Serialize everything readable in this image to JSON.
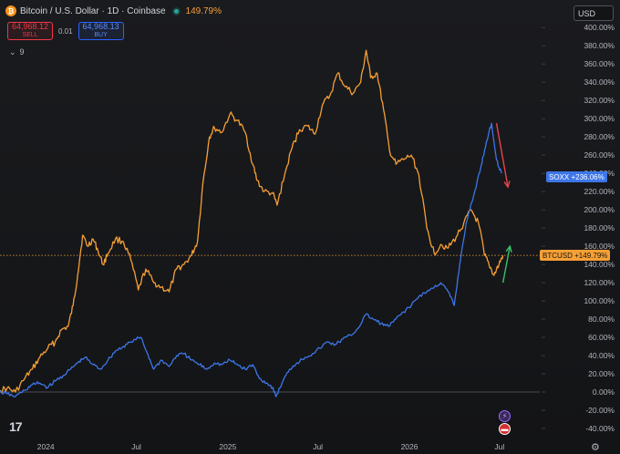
{
  "header": {
    "title": "Bitcoin / U.S. Dollar · 1D · Coinbase",
    "change": "149.79%"
  },
  "trade": {
    "sell_price": "64,968.12",
    "sell_label": "SELL",
    "spread": "0.01",
    "buy_price": "64,968.13",
    "buy_label": "BUY"
  },
  "indicators": {
    "count": "9"
  },
  "currency": {
    "selected": "USD"
  },
  "labels": {
    "soxx": {
      "name": "SOXX",
      "value": "+236.06%"
    },
    "btc": {
      "name": "BTCUSD",
      "value": "+149.79%"
    }
  },
  "icons": {
    "logo": "tradingview-logo-icon",
    "settings": "gear-icon",
    "flash": "lightning-icon",
    "flag": "us-flag-icon",
    "trend_down": "red-arrow-down",
    "trend_up": "green-arrow-up"
  },
  "colors": {
    "btc": "#f7a035",
    "soxx": "#3d76e8",
    "down_arrow": "#e8424c",
    "up_arrow": "#39c06a",
    "background": "#131416"
  },
  "chart_data": {
    "type": "line",
    "y_unit": "%",
    "ylim": [
      -50,
      410
    ],
    "y_ticks": [
      "400.00%",
      "380.00%",
      "360.00%",
      "340.00%",
      "320.00%",
      "300.00%",
      "280.00%",
      "260.00%",
      "240.00%",
      "220.00%",
      "200.00%",
      "180.00%",
      "160.00%",
      "140.00%",
      "120.00%",
      "100.00%",
      "80.00%",
      "60.00%",
      "40.00%",
      "20.00%",
      "0.00%",
      "-20.00%",
      "-40.00%"
    ],
    "y_tick_values": [
      400,
      380,
      360,
      340,
      320,
      300,
      280,
      260,
      240,
      220,
      200,
      180,
      160,
      140,
      120,
      100,
      80,
      60,
      40,
      20,
      0,
      -20,
      -40
    ],
    "x_ticks": [
      "2024",
      "Jul",
      "2025",
      "Jul",
      "2026",
      "Jul"
    ],
    "x_tick_dates": [
      "2024-01-01",
      "2024-07-01",
      "2025-01-01",
      "2025-07-01",
      "2026-01-01",
      "2026-07-01"
    ],
    "xlim": [
      "2023-10-01",
      "2026-09-20"
    ],
    "series": [
      {
        "name": "BTCUSD",
        "color": "#f7a035",
        "points": [
          [
            "2023-10-01",
            2
          ],
          [
            "2023-10-15",
            4
          ],
          [
            "2023-11-01",
            0
          ],
          [
            "2023-11-20",
            15
          ],
          [
            "2023-12-05",
            25
          ],
          [
            "2023-12-20",
            38
          ],
          [
            "2024-01-05",
            48
          ],
          [
            "2024-01-20",
            55
          ],
          [
            "2024-02-01",
            68
          ],
          [
            "2024-02-15",
            72
          ],
          [
            "2024-02-25",
            95
          ],
          [
            "2024-03-05",
            128
          ],
          [
            "2024-03-15",
            172
          ],
          [
            "2024-03-25",
            160
          ],
          [
            "2024-04-05",
            168
          ],
          [
            "2024-04-15",
            155
          ],
          [
            "2024-04-25",
            140
          ],
          [
            "2024-05-05",
            152
          ],
          [
            "2024-05-20",
            168
          ],
          [
            "2024-06-05",
            165
          ],
          [
            "2024-06-20",
            145
          ],
          [
            "2024-07-05",
            112
          ],
          [
            "2024-07-20",
            135
          ],
          [
            "2024-08-05",
            120
          ],
          [
            "2024-08-20",
            115
          ],
          [
            "2024-09-05",
            110
          ],
          [
            "2024-09-20",
            135
          ],
          [
            "2024-10-05",
            140
          ],
          [
            "2024-10-20",
            150
          ],
          [
            "2024-11-01",
            165
          ],
          [
            "2024-11-12",
            230
          ],
          [
            "2024-11-25",
            280
          ],
          [
            "2024-12-05",
            290
          ],
          [
            "2024-12-20",
            285
          ],
          [
            "2025-01-05",
            305
          ],
          [
            "2025-01-20",
            298
          ],
          [
            "2025-02-05",
            285
          ],
          [
            "2025-02-20",
            250
          ],
          [
            "2025-03-01",
            232
          ],
          [
            "2025-03-15",
            220
          ],
          [
            "2025-04-01",
            218
          ],
          [
            "2025-04-10",
            205
          ],
          [
            "2025-04-25",
            238
          ],
          [
            "2025-05-10",
            268
          ],
          [
            "2025-05-25",
            288
          ],
          [
            "2025-06-10",
            292
          ],
          [
            "2025-06-25",
            283
          ],
          [
            "2025-07-10",
            315
          ],
          [
            "2025-07-25",
            325
          ],
          [
            "2025-08-10",
            350
          ],
          [
            "2025-08-25",
            335
          ],
          [
            "2025-09-10",
            328
          ],
          [
            "2025-09-25",
            340
          ],
          [
            "2025-10-06",
            375
          ],
          [
            "2025-10-15",
            345
          ],
          [
            "2025-10-28",
            350
          ],
          [
            "2025-11-10",
            310
          ],
          [
            "2025-11-22",
            265
          ],
          [
            "2025-12-05",
            250
          ],
          [
            "2025-12-20",
            255
          ],
          [
            "2026-01-05",
            260
          ],
          [
            "2026-01-20",
            238
          ],
          [
            "2026-02-05",
            180
          ],
          [
            "2026-02-20",
            152
          ],
          [
            "2026-03-05",
            162
          ],
          [
            "2026-03-20",
            158
          ],
          [
            "2026-04-05",
            170
          ],
          [
            "2026-04-20",
            185
          ],
          [
            "2026-05-05",
            200
          ],
          [
            "2026-05-20",
            185
          ],
          [
            "2026-06-01",
            150
          ],
          [
            "2026-06-10",
            140
          ],
          [
            "2026-06-20",
            128
          ],
          [
            "2026-06-30",
            140
          ],
          [
            "2026-07-08",
            150
          ]
        ]
      },
      {
        "name": "SOXX",
        "color": "#3d76e8",
        "points": [
          [
            "2023-10-01",
            0
          ],
          [
            "2023-10-15",
            -2
          ],
          [
            "2023-11-01",
            -5
          ],
          [
            "2023-11-20",
            2
          ],
          [
            "2023-12-05",
            8
          ],
          [
            "2023-12-20",
            10
          ],
          [
            "2024-01-05",
            5
          ],
          [
            "2024-01-20",
            12
          ],
          [
            "2024-02-05",
            18
          ],
          [
            "2024-02-20",
            25
          ],
          [
            "2024-03-05",
            32
          ],
          [
            "2024-03-20",
            38
          ],
          [
            "2024-04-05",
            30
          ],
          [
            "2024-04-20",
            25
          ],
          [
            "2024-05-05",
            35
          ],
          [
            "2024-05-20",
            45
          ],
          [
            "2024-06-05",
            50
          ],
          [
            "2024-06-20",
            55
          ],
          [
            "2024-07-10",
            60
          ],
          [
            "2024-07-25",
            40
          ],
          [
            "2024-08-05",
            25
          ],
          [
            "2024-08-20",
            35
          ],
          [
            "2024-09-05",
            28
          ],
          [
            "2024-09-20",
            40
          ],
          [
            "2024-10-05",
            42
          ],
          [
            "2024-10-20",
            35
          ],
          [
            "2024-11-05",
            30
          ],
          [
            "2024-11-20",
            25
          ],
          [
            "2024-12-05",
            32
          ],
          [
            "2024-12-20",
            30
          ],
          [
            "2025-01-05",
            35
          ],
          [
            "2025-01-20",
            30
          ],
          [
            "2025-02-05",
            25
          ],
          [
            "2025-02-20",
            30
          ],
          [
            "2025-03-05",
            15
          ],
          [
            "2025-03-20",
            10
          ],
          [
            "2025-04-01",
            5
          ],
          [
            "2025-04-08",
            -5
          ],
          [
            "2025-04-20",
            10
          ],
          [
            "2025-05-05",
            25
          ],
          [
            "2025-05-20",
            32
          ],
          [
            "2025-06-05",
            38
          ],
          [
            "2025-06-20",
            42
          ],
          [
            "2025-07-05",
            48
          ],
          [
            "2025-07-20",
            55
          ],
          [
            "2025-08-05",
            52
          ],
          [
            "2025-08-20",
            58
          ],
          [
            "2025-09-05",
            62
          ],
          [
            "2025-09-20",
            70
          ],
          [
            "2025-10-05",
            85
          ],
          [
            "2025-10-20",
            80
          ],
          [
            "2025-11-05",
            75
          ],
          [
            "2025-11-20",
            72
          ],
          [
            "2025-12-05",
            80
          ],
          [
            "2025-12-20",
            88
          ],
          [
            "2026-01-05",
            95
          ],
          [
            "2026-01-20",
            105
          ],
          [
            "2026-02-05",
            110
          ],
          [
            "2026-02-20",
            115
          ],
          [
            "2026-03-05",
            120
          ],
          [
            "2026-03-20",
            110
          ],
          [
            "2026-04-01",
            95
          ],
          [
            "2026-04-12",
            140
          ],
          [
            "2026-04-25",
            185
          ],
          [
            "2026-05-10",
            215
          ],
          [
            "2026-05-25",
            248
          ],
          [
            "2026-06-05",
            275
          ],
          [
            "2026-06-15",
            295
          ],
          [
            "2026-06-25",
            255
          ],
          [
            "2026-07-05",
            240
          ]
        ]
      }
    ]
  },
  "annotations": {
    "down_arrow": {
      "from": [
        "2026-06-25",
        295
      ],
      "to": [
        "2026-07-18",
        225
      ],
      "color": "#e8424c"
    },
    "up_arrow": {
      "from": [
        "2026-07-08",
        120
      ],
      "to": [
        "2026-07-22",
        160
      ],
      "color": "#39c06a"
    }
  }
}
